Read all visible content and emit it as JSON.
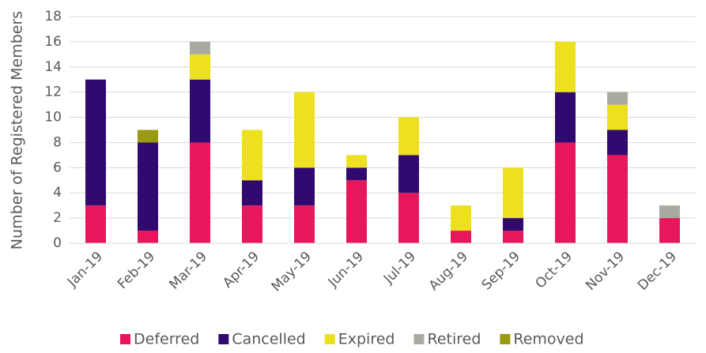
{
  "chart_data": {
    "type": "bar",
    "stacked": true,
    "y_label": "Number of Registered Members",
    "categories": [
      "Jan-19",
      "Feb-19",
      "Mar-19",
      "Apr-19",
      "May-19",
      "Jun-19",
      "Jul-19",
      "Aug-19",
      "Sep-19",
      "Oct-19",
      "Nov-19",
      "Dec-19"
    ],
    "series": [
      {
        "name": "Deferred",
        "color": "#e8175d",
        "values": [
          3,
          1,
          8,
          3,
          3,
          5,
          4,
          1,
          1,
          8,
          7,
          2
        ]
      },
      {
        "name": "Cancelled",
        "color": "#300a6e",
        "values": [
          10,
          7,
          5,
          2,
          3,
          1,
          3,
          0,
          1,
          4,
          2,
          0
        ]
      },
      {
        "name": "Expired",
        "color": "#ece01f",
        "values": [
          0,
          0,
          2,
          4,
          6,
          1,
          3,
          2,
          4,
          4,
          2,
          0
        ]
      },
      {
        "name": "Retired",
        "color": "#a8aba0",
        "values": [
          0,
          0,
          1,
          0,
          0,
          0,
          0,
          0,
          0,
          0,
          1,
          1
        ]
      },
      {
        "name": "Removed",
        "color": "#9a9912",
        "values": [
          0,
          1,
          0,
          0,
          0,
          0,
          0,
          0,
          0,
          0,
          0,
          0
        ]
      }
    ],
    "ylim": [
      0,
      18
    ],
    "yticks": [
      0,
      2,
      4,
      6,
      8,
      10,
      12,
      14,
      16,
      18
    ],
    "grid": true,
    "legend": "bottom"
  }
}
